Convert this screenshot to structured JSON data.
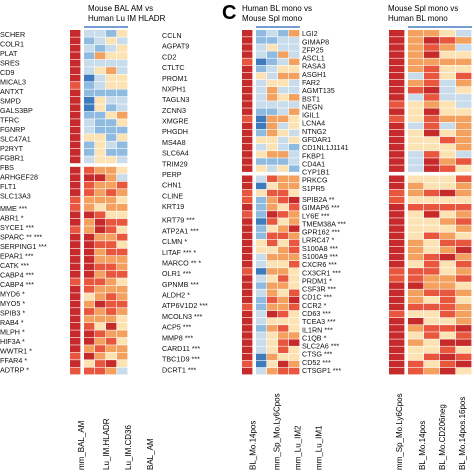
{
  "panel_letter": "C",
  "panels": [
    {
      "title_line1": "Mouse BAL AM vs",
      "title_line2": "Human Lu IM HLADR",
      "columns": [
        "mm_BAL_AM",
        "Lu_IM.HLADR",
        "Lu_IM.CD36",
        "BAL_AM"
      ],
      "left_genes": [
        "SCHER",
        "COLR1",
        "PLAT",
        "SRES",
        "CD9",
        "MICAL3",
        "ANTXT",
        "SMPD",
        "GALS3BP",
        "TFRC",
        "FGNRP",
        "SLC47A1",
        "P2RYT",
        "FGBR1",
        "FBS",
        "ARHGEF28",
        "FLT1",
        "SLC13A3",
        "MME ***",
        "ABR1 *",
        "SYCE1 ***",
        "SPARC ** ***",
        "SERPING1 ***",
        "EPAR1 ***",
        "CATK ***",
        "CABP4 ***",
        "CABP4 ***",
        "MYD6 *",
        "MYO5 *",
        "SPIB3 *",
        "RAB4 *",
        "MLPH *",
        "HIF3A *",
        "WWTR1 *",
        "FFAR4 *",
        "ADTRP *"
      ],
      "right_genes": [
        "CCLN",
        "AGPAT9",
        "CD2",
        "CTLTC",
        "PROM1",
        "NXPH1",
        "TAGLN3",
        "ZCNN3",
        "XMGRE",
        "PHGDH",
        "MS4A8",
        "SLC6A4",
        "TRIM29",
        "PERP",
        "CHN1",
        "CLINE",
        "KRT19",
        "KRT79 ***",
        "ATP2A1 ***",
        "CLMN *",
        "LITAF *** *",
        "MARCO ** *",
        "OLR1 ***",
        "GPNMB ***",
        "ALDH2 *",
        "ATP6V1D2 ***",
        "MCOLN3 ***",
        "ACP5 ***",
        "MMP8 ***",
        "CARD11 ***",
        "TBC1D9 ***",
        "DCRT1 ***"
      ]
    },
    {
      "title_line1": "Human BL mono vs",
      "title_line2": "Mouse Spl mono",
      "columns": [
        "BL_Mo.14pos",
        "mm_Sp_Mo.Ly6Cpos",
        "mm_Lu_IM2",
        "mm_Lu_IM1"
      ],
      "right_genes": [
        "LGI2",
        "GIMAP8",
        "ZFP25",
        "ASCL1",
        "RASA3",
        "ASGH1",
        "FAR2",
        "AGMT135",
        "BST1",
        "NEGN",
        "IGIL1",
        "LCNA4",
        "NTNG2",
        "GFDAR1",
        "CD1NL1J1141",
        "FKBP1",
        "CD4A1",
        "CYP1B1",
        "PRKCG",
        "S1PR5",
        "SPIB2A **",
        "GIMAP6 ***",
        "LY6E ***",
        "TMEM38A ***",
        "GPR162 ***",
        "LRRC47 *",
        "S100A8 ***",
        "S100A9 ***",
        "CXCR6 ***",
        "CX3CR1 ***",
        "PRDM1 *",
        "CSF3R ***",
        "CD1C ***",
        "CCR2 *",
        "CD63 ***",
        "TCEA3 ***",
        "IL1RN ***",
        "C1QB *",
        "SLC2A6 ***",
        "CTSG ***",
        "CD52 ***",
        "CTSGP1 ***"
      ]
    },
    {
      "title_line1": "Mouse Spl mono vs",
      "title_line2": "Human BL mono",
      "columns": [
        "mm_Sp_Mo.Ly6Cpos",
        "BL_Mo.14pos",
        "BL_Mo.CD206neg",
        "BL_Mo.14pos.16pos"
      ]
    }
  ],
  "colors": {
    "dark_red": "#c62a2a",
    "red": "#e8563e",
    "orange": "#f4a15f",
    "pale": "#fde3b4",
    "light_blue": "#c9dcec",
    "mid_blue": "#8fbbe0",
    "blue": "#3d7bbd",
    "header_line": "#4b7fc2"
  },
  "legend": "heatmap",
  "heatmap_style": "log-fold-change z-score cells"
}
